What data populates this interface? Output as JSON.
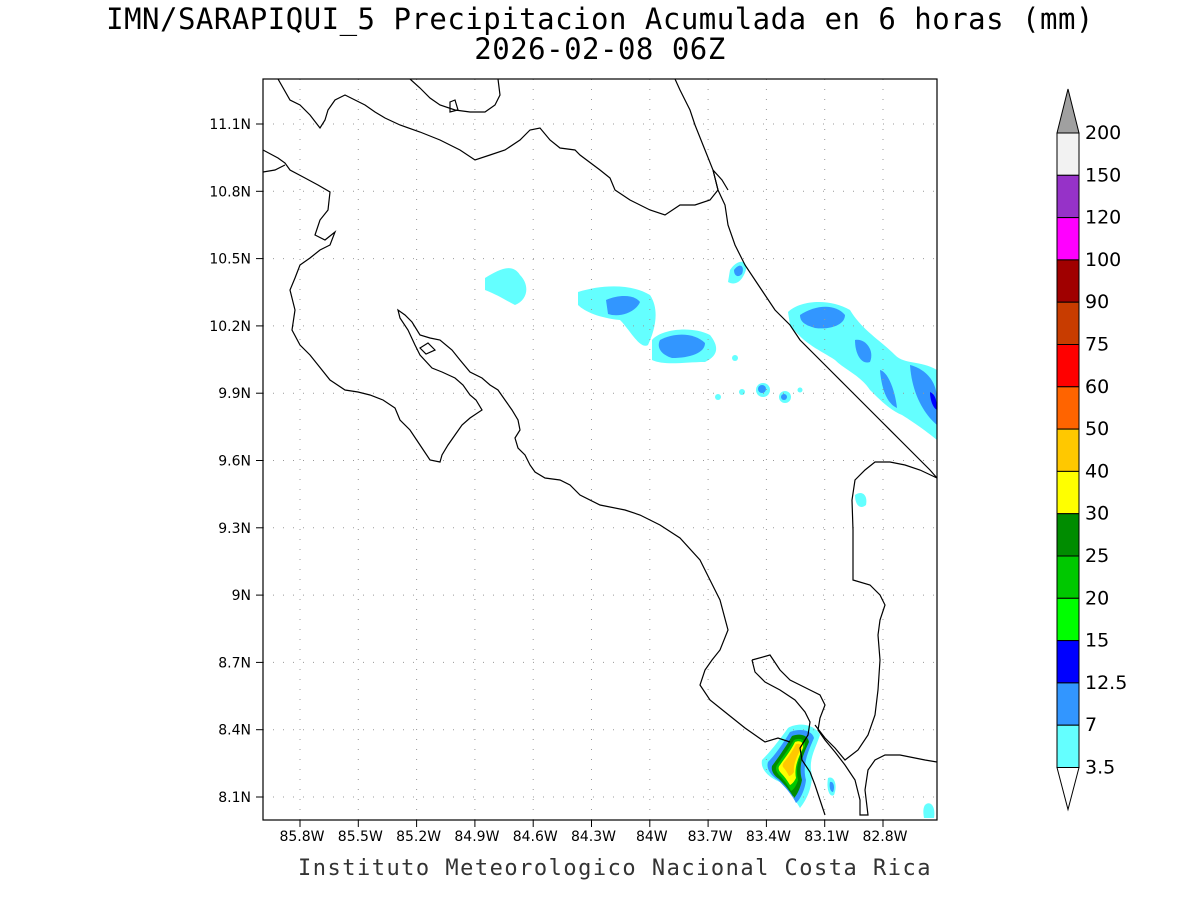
{
  "title": {
    "line1": "IMN/SARAPIQUI_5 Precipitacion Acumulada en 6 horas (mm)",
    "line2": "2026-02-08 06Z"
  },
  "footer": "Instituto Meteorologico Nacional Costa Rica",
  "lat_ticks": [
    "11.1N",
    "10.8N",
    "10.5N",
    "10.2N",
    "9.9N",
    "9.6N",
    "9.3N",
    "9N",
    "8.7N",
    "8.4N",
    "8.1N"
  ],
  "lon_ticks": [
    "85.8W",
    "85.5W",
    "85.2W",
    "84.9W",
    "84.6W",
    "84.3W",
    "84W",
    "83.7W",
    "83.4W",
    "83.1W",
    "82.8W"
  ],
  "colorbar": {
    "labels": [
      "200",
      "150",
      "120",
      "100",
      "90",
      "75",
      "60",
      "50",
      "40",
      "30",
      "25",
      "20",
      "15",
      "12.5",
      "7",
      "3.5"
    ],
    "colors": [
      "#f2f2f2",
      "#9632c8",
      "#ff00ff",
      "#a00000",
      "#c83c00",
      "#ff0000",
      "#ff6400",
      "#ffc800",
      "#ffff00",
      "#008c00",
      "#00c800",
      "#00ff00",
      "#0000ff",
      "#3296ff",
      "#64ffff"
    ],
    "top_arrow_color": "#a0a0a0",
    "bottom_arrow_color": "#ffffff"
  }
}
